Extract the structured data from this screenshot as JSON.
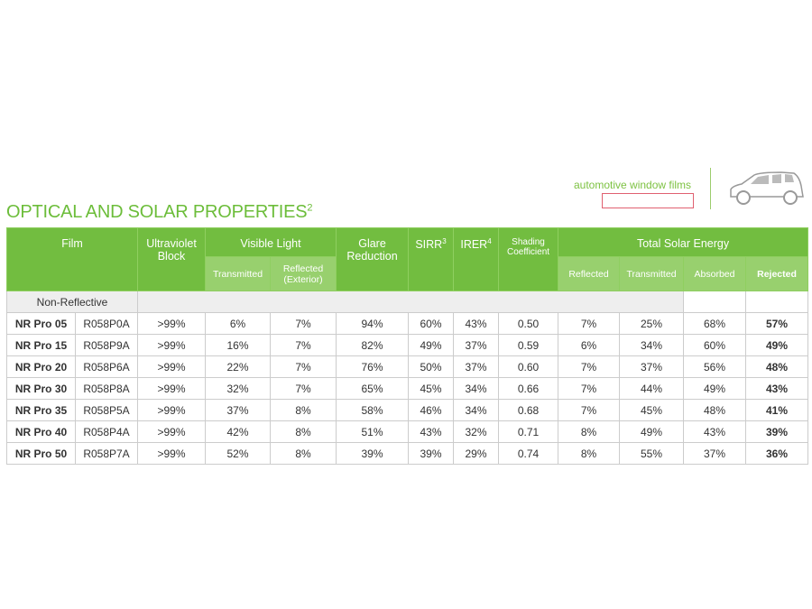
{
  "brand": "automotive window films",
  "title": "OPTICAL AND SOLAR PROPERTIES",
  "title_sup": "2",
  "headers": {
    "film": "Film",
    "uv": "Ultraviolet Block",
    "visible": "Visible Light",
    "vis_trans": "Transmitted",
    "vis_refl": "Reflected (Exterior)",
    "glare": "Glare Reduction",
    "sirr": "SIRR",
    "sirr_sup": "3",
    "irer": "IRER",
    "irer_sup": "4",
    "shading": "Shading Coefficient",
    "tse": "Total Solar Energy",
    "tse_refl": "Reflected",
    "tse_trans": "Transmitted",
    "tse_abs": "Absorbed",
    "tse_rej": "Rejected"
  },
  "section": "Non-Reflective",
  "rows": [
    [
      "NR Pro 05",
      "R058P0A",
      ">99%",
      "6%",
      "7%",
      "94%",
      "60%",
      "43%",
      "0.50",
      "7%",
      "25%",
      "68%",
      "57%"
    ],
    [
      "NR Pro 15",
      "R058P9A",
      ">99%",
      "16%",
      "7%",
      "82%",
      "49%",
      "37%",
      "0.59",
      "6%",
      "34%",
      "60%",
      "49%"
    ],
    [
      "NR Pro 20",
      "R058P6A",
      ">99%",
      "22%",
      "7%",
      "76%",
      "50%",
      "37%",
      "0.60",
      "7%",
      "37%",
      "56%",
      "48%"
    ],
    [
      "NR Pro 30",
      "R058P8A",
      ">99%",
      "32%",
      "7%",
      "65%",
      "45%",
      "34%",
      "0.66",
      "7%",
      "44%",
      "49%",
      "43%"
    ],
    [
      "NR Pro 35",
      "R058P5A",
      ">99%",
      "37%",
      "8%",
      "58%",
      "46%",
      "34%",
      "0.68",
      "7%",
      "45%",
      "48%",
      "41%"
    ],
    [
      "NR Pro 40",
      "R058P4A",
      ">99%",
      "42%",
      "8%",
      "51%",
      "43%",
      "32%",
      "0.71",
      "8%",
      "49%",
      "43%",
      "39%"
    ],
    [
      "NR Pro 50",
      "R058P7A",
      ">99%",
      "52%",
      "8%",
      "39%",
      "39%",
      "29%",
      "0.74",
      "8%",
      "55%",
      "37%",
      "36%"
    ]
  ]
}
